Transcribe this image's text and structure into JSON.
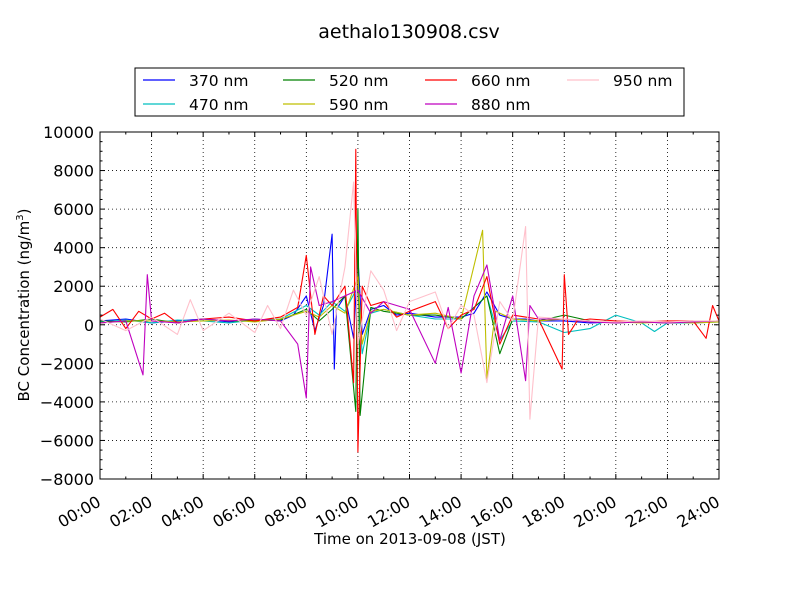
{
  "chart_data": {
    "type": "line",
    "title": "aethalo130908.csv",
    "xlabel": "Time on 2013-09-08 (JST)",
    "ylabel_main": "BC Concentration (ng/m",
    "ylabel_sup": "3",
    "ylabel_close": ")",
    "xlim": [
      "00:00",
      "24:00"
    ],
    "ylim": [
      -8000,
      10000
    ],
    "grid": true,
    "grid_style": "dotted",
    "legend_position": "top-center",
    "legend_columns": 4,
    "x_ticks": [
      "00:00",
      "02:00",
      "04:00",
      "06:00",
      "08:00",
      "10:00",
      "12:00",
      "14:00",
      "16:00",
      "18:00",
      "20:00",
      "22:00",
      "24:00"
    ],
    "y_ticks": [
      10000,
      8000,
      6000,
      4000,
      2000,
      0,
      -2000,
      -4000,
      -6000,
      -8000
    ],
    "series": [
      {
        "name": "370 nm",
        "color": "#0000ff",
        "points": [
          [
            "00:00",
            200
          ],
          [
            "01:00",
            300
          ],
          [
            "02:00",
            100
          ],
          [
            "03:00",
            200
          ],
          [
            "04:00",
            300
          ],
          [
            "05:00",
            150
          ],
          [
            "06:00",
            300
          ],
          [
            "07:00",
            200
          ],
          [
            "07:30",
            500
          ],
          [
            "08:00",
            1500
          ],
          [
            "08:20",
            -300
          ],
          [
            "08:40",
            1000
          ],
          [
            "09:00",
            4700
          ],
          [
            "09:05",
            -2300
          ],
          [
            "09:10",
            800
          ],
          [
            "09:30",
            1500
          ],
          [
            "09:50",
            -700
          ],
          [
            "10:00",
            3500
          ],
          [
            "10:10",
            -500
          ],
          [
            "10:30",
            800
          ],
          [
            "11:00",
            1000
          ],
          [
            "11:30",
            500
          ],
          [
            "12:00",
            600
          ],
          [
            "13:00",
            400
          ],
          [
            "14:00",
            400
          ],
          [
            "14:30",
            600
          ],
          [
            "15:00",
            1700
          ],
          [
            "15:30",
            500
          ],
          [
            "16:00",
            300
          ],
          [
            "16:30",
            300
          ],
          [
            "17:00",
            200
          ],
          [
            "18:00",
            200
          ],
          [
            "19:00",
            100
          ],
          [
            "20:00",
            150
          ],
          [
            "21:00",
            150
          ],
          [
            "22:00",
            100
          ],
          [
            "23:00",
            150
          ],
          [
            "24:00",
            200
          ]
        ]
      },
      {
        "name": "470 nm",
        "color": "#00bfbf",
        "points": [
          [
            "00:00",
            150
          ],
          [
            "01:00",
            250
          ],
          [
            "02:00",
            100
          ],
          [
            "03:00",
            250
          ],
          [
            "04:00",
            200
          ],
          [
            "05:00",
            100
          ],
          [
            "06:00",
            250
          ],
          [
            "07:00",
            300
          ],
          [
            "08:00",
            1000
          ],
          [
            "08:30",
            500
          ],
          [
            "09:00",
            1200
          ],
          [
            "09:30",
            700
          ],
          [
            "10:00",
            2000
          ],
          [
            "10:10",
            -1500
          ],
          [
            "10:30",
            600
          ],
          [
            "11:00",
            800
          ],
          [
            "12:00",
            500
          ],
          [
            "13:00",
            300
          ],
          [
            "14:00",
            300
          ],
          [
            "15:00",
            1500
          ],
          [
            "15:30",
            -800
          ],
          [
            "16:00",
            200
          ],
          [
            "17:00",
            150
          ],
          [
            "18:00",
            -400
          ],
          [
            "19:00",
            -200
          ],
          [
            "19:30",
            150
          ],
          [
            "20:00",
            500
          ],
          [
            "21:00",
            100
          ],
          [
            "21:30",
            -350
          ],
          [
            "22:00",
            100
          ],
          [
            "23:00",
            100
          ],
          [
            "24:00",
            150
          ]
        ]
      },
      {
        "name": "520 nm",
        "color": "#008000",
        "points": [
          [
            "00:00",
            200
          ],
          [
            "01:00",
            150
          ],
          [
            "02:00",
            300
          ],
          [
            "03:00",
            100
          ],
          [
            "04:00",
            300
          ],
          [
            "05:00",
            200
          ],
          [
            "06:00",
            200
          ],
          [
            "07:00",
            250
          ],
          [
            "08:00",
            800
          ],
          [
            "08:30",
            200
          ],
          [
            "09:00",
            800
          ],
          [
            "09:30",
            1500
          ],
          [
            "09:55",
            -4500
          ],
          [
            "10:00",
            6000
          ],
          [
            "10:05",
            -4700
          ],
          [
            "10:30",
            900
          ],
          [
            "11:00",
            700
          ],
          [
            "12:00",
            500
          ],
          [
            "13:00",
            500
          ],
          [
            "14:00",
            300
          ],
          [
            "15:00",
            1500
          ],
          [
            "15:30",
            -1500
          ],
          [
            "16:00",
            300
          ],
          [
            "17:00",
            200
          ],
          [
            "18:00",
            500
          ],
          [
            "19:00",
            200
          ],
          [
            "20:00",
            100
          ],
          [
            "21:00",
            150
          ],
          [
            "22:00",
            100
          ],
          [
            "23:00",
            150
          ],
          [
            "24:00",
            200
          ]
        ]
      },
      {
        "name": "590 nm",
        "color": "#bfbf00",
        "points": [
          [
            "00:00",
            100
          ],
          [
            "01:00",
            200
          ],
          [
            "02:00",
            200
          ],
          [
            "03:00",
            150
          ],
          [
            "04:00",
            200
          ],
          [
            "05:00",
            250
          ],
          [
            "06:00",
            150
          ],
          [
            "07:00",
            300
          ],
          [
            "08:00",
            700
          ],
          [
            "08:30",
            400
          ],
          [
            "09:00",
            1000
          ],
          [
            "09:30",
            600
          ],
          [
            "10:00",
            2500
          ],
          [
            "10:10",
            -1000
          ],
          [
            "10:30",
            700
          ],
          [
            "11:00",
            800
          ],
          [
            "12:00",
            500
          ],
          [
            "13:00",
            600
          ],
          [
            "14:00",
            300
          ],
          [
            "14:50",
            4900
          ],
          [
            "15:00",
            -2800
          ],
          [
            "15:20",
            700
          ],
          [
            "16:00",
            300
          ],
          [
            "17:00",
            200
          ],
          [
            "18:00",
            300
          ],
          [
            "19:00",
            150
          ],
          [
            "20:00",
            150
          ],
          [
            "21:00",
            100
          ],
          [
            "22:00",
            150
          ],
          [
            "23:00",
            100
          ],
          [
            "24:00",
            150
          ]
        ]
      },
      {
        "name": "660 nm",
        "color": "#ff0000",
        "points": [
          [
            "00:00",
            400
          ],
          [
            "00:30",
            800
          ],
          [
            "01:00",
            -200
          ],
          [
            "01:30",
            700
          ],
          [
            "02:00",
            300
          ],
          [
            "02:30",
            600
          ],
          [
            "03:00",
            100
          ],
          [
            "04:00",
            300
          ],
          [
            "05:00",
            400
          ],
          [
            "06:00",
            200
          ],
          [
            "07:00",
            400
          ],
          [
            "07:40",
            900
          ],
          [
            "08:00",
            3600
          ],
          [
            "08:20",
            -500
          ],
          [
            "08:40",
            1500
          ],
          [
            "09:00",
            1000
          ],
          [
            "09:30",
            2000
          ],
          [
            "09:50",
            -3000
          ],
          [
            "09:55",
            9100
          ],
          [
            "10:00",
            -6600
          ],
          [
            "10:10",
            2000
          ],
          [
            "10:30",
            1000
          ],
          [
            "11:00",
            1200
          ],
          [
            "11:30",
            400
          ],
          [
            "12:00",
            700
          ],
          [
            "13:00",
            1200
          ],
          [
            "13:30",
            -200
          ],
          [
            "14:00",
            500
          ],
          [
            "14:30",
            800
          ],
          [
            "15:00",
            2500
          ],
          [
            "15:30",
            -1000
          ],
          [
            "16:00",
            500
          ],
          [
            "16:30",
            400
          ],
          [
            "17:00",
            300
          ],
          [
            "17:55",
            -2300
          ],
          [
            "18:00",
            2600
          ],
          [
            "18:10",
            -500
          ],
          [
            "18:30",
            200
          ],
          [
            "19:00",
            300
          ],
          [
            "20:00",
            200
          ],
          [
            "21:00",
            150
          ],
          [
            "22:00",
            200
          ],
          [
            "23:00",
            200
          ],
          [
            "23:30",
            -700
          ],
          [
            "23:45",
            1000
          ],
          [
            "24:00",
            200
          ]
        ]
      },
      {
        "name": "880 nm",
        "color": "#bf00bf",
        "points": [
          [
            "00:00",
            100
          ],
          [
            "01:00",
            200
          ],
          [
            "01:40",
            -2600
          ],
          [
            "01:50",
            2600
          ],
          [
            "02:00",
            200
          ],
          [
            "03:00",
            100
          ],
          [
            "04:00",
            300
          ],
          [
            "05:00",
            200
          ],
          [
            "06:00",
            300
          ],
          [
            "07:00",
            200
          ],
          [
            "07:40",
            -1000
          ],
          [
            "08:00",
            -3800
          ],
          [
            "08:10",
            3000
          ],
          [
            "08:30",
            1000
          ],
          [
            "09:00",
            1200
          ],
          [
            "09:30",
            1500
          ],
          [
            "10:00",
            1800
          ],
          [
            "10:30",
            600
          ],
          [
            "11:00",
            1200
          ],
          [
            "12:00",
            800
          ],
          [
            "13:00",
            -2000
          ],
          [
            "13:30",
            900
          ],
          [
            "14:00",
            -2500
          ],
          [
            "14:30",
            1500
          ],
          [
            "15:00",
            3100
          ],
          [
            "15:30",
            -800
          ],
          [
            "16:00",
            1500
          ],
          [
            "16:30",
            -2900
          ],
          [
            "16:40",
            1000
          ],
          [
            "17:00",
            300
          ],
          [
            "18:00",
            300
          ],
          [
            "19:00",
            150
          ],
          [
            "20:00",
            100
          ],
          [
            "21:00",
            150
          ],
          [
            "22:00",
            100
          ],
          [
            "23:00",
            150
          ],
          [
            "24:00",
            200
          ]
        ]
      },
      {
        "name": "950 nm",
        "color": "#ffc0cb",
        "points": [
          [
            "00:00",
            300
          ],
          [
            "01:00",
            -300
          ],
          [
            "02:00",
            400
          ],
          [
            "03:00",
            -500
          ],
          [
            "03:30",
            1300
          ],
          [
            "04:00",
            -300
          ],
          [
            "05:00",
            600
          ],
          [
            "06:00",
            -400
          ],
          [
            "06:30",
            1000
          ],
          [
            "07:00",
            -200
          ],
          [
            "07:30",
            1800
          ],
          [
            "08:00",
            500
          ],
          [
            "08:30",
            2500
          ],
          [
            "09:00",
            -500
          ],
          [
            "09:30",
            3000
          ],
          [
            "09:50",
            7400
          ],
          [
            "10:00",
            -1000
          ],
          [
            "10:30",
            2800
          ],
          [
            "11:00",
            1800
          ],
          [
            "11:30",
            -300
          ],
          [
            "12:00",
            1200
          ],
          [
            "13:00",
            1700
          ],
          [
            "13:30",
            -200
          ],
          [
            "14:00",
            1000
          ],
          [
            "14:30",
            500
          ],
          [
            "15:00",
            -3000
          ],
          [
            "15:30",
            1200
          ],
          [
            "16:00",
            200
          ],
          [
            "16:30",
            5100
          ],
          [
            "16:40",
            -4900
          ],
          [
            "17:00",
            400
          ],
          [
            "18:00",
            300
          ],
          [
            "19:00",
            200
          ],
          [
            "20:00",
            150
          ],
          [
            "21:00",
            200
          ],
          [
            "22:00",
            150
          ],
          [
            "23:00",
            200
          ],
          [
            "24:00",
            200
          ]
        ]
      }
    ]
  }
}
